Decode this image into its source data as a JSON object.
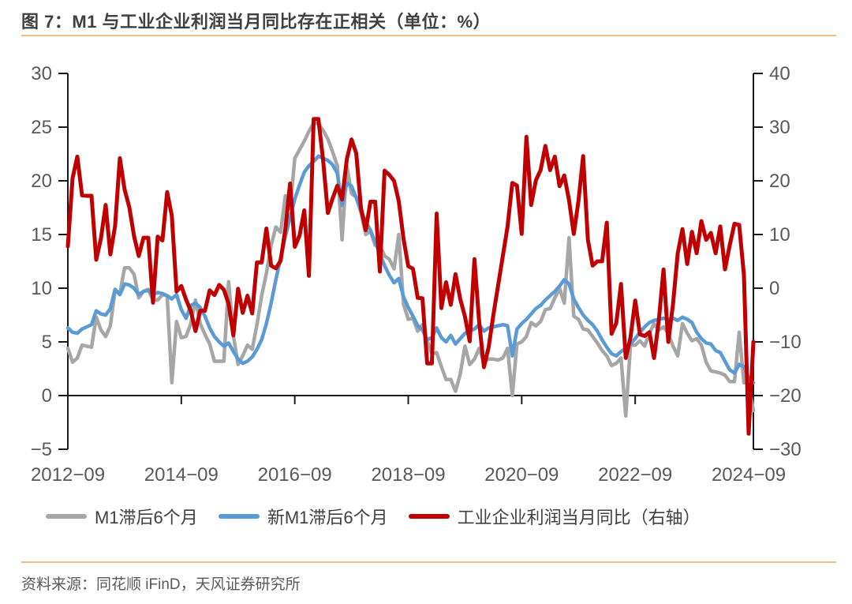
{
  "figure": {
    "title": "图 7：M1 与工业企业利润当月同比存在正相关（单位：%）",
    "source": "资料来源：同花顺 iFinD，天风证券研究所"
  },
  "colors": {
    "title_text": "#404040",
    "rule_orange": "#f3bd8b",
    "axis_line": "#1a1a1a",
    "tick_label": "#595959",
    "series_m1": "#a6a6a6",
    "series_new_m1": "#5b9bd5",
    "series_profit": "#c00000",
    "background": "#ffffff"
  },
  "chart_data": {
    "type": "line",
    "title": "M1 与工业企业利润当月同比存在正相关（单位：%）",
    "frequency": "monthly",
    "x_start": "2012-09",
    "x_end": "2024-10",
    "grid": false,
    "legend_position": "bottom",
    "x_axis": {
      "tick_labels": [
        "2012−09",
        "2014−09",
        "2016−09",
        "2018−09",
        "2020−09",
        "2022−09",
        "2024−09"
      ],
      "tick_indices": [
        0,
        24,
        48,
        72,
        96,
        120,
        144
      ]
    },
    "left_axis": {
      "range": [
        -5,
        30
      ],
      "tick_values": [
        30,
        25,
        20,
        15,
        10,
        5,
        0,
        -5
      ],
      "tick_labels": [
        "30",
        "25",
        "20",
        "15",
        "10",
        "5",
        "0",
        "−5"
      ]
    },
    "right_axis": {
      "range": [
        -30,
        40
      ],
      "tick_values": [
        40,
        30,
        20,
        10,
        0,
        -10,
        -20,
        -30
      ],
      "tick_labels": [
        "40",
        "30",
        "20",
        "10",
        "0",
        "−10",
        "−20",
        "−30"
      ]
    },
    "series": [
      {
        "name": "M1滞后6个月",
        "axis": "left",
        "color": "#a6a6a6",
        "values": [
          4.4,
          3.1,
          3.5,
          4.7,
          4.6,
          4.5,
          7.3,
          6.1,
          5.5,
          6.5,
          9.8,
          9.5,
          11.9,
          11.9,
          11.3,
          9.1,
          9.7,
          9.9,
          8.9,
          8.9,
          9.4,
          9.3,
          1.2,
          6.9,
          5.4,
          5.5,
          6.7,
          8.9,
          6.7,
          5.7,
          4.8,
          3.2,
          3.2,
          3.2,
          10.6,
          5.6,
          2.9,
          3.7,
          4.7,
          4.3,
          6.6,
          9.3,
          11.4,
          14.0,
          15.7,
          15.2,
          18.6,
          17.4,
          22.1,
          22.9,
          23.7,
          24.6,
          25.4,
          25.3,
          24.7,
          23.9,
          22.7,
          21.4,
          14.5,
          21.4,
          18.8,
          18.5,
          17.0,
          15.0,
          15.3,
          14.0,
          14.0,
          13.0,
          12.7,
          11.8,
          15.0,
          8.5,
          7.1,
          7.2,
          6.0,
          6.6,
          5.1,
          3.9,
          4.0,
          2.7,
          1.5,
          1.5,
          0.4,
          2.0,
          4.6,
          2.9,
          3.4,
          4.4,
          3.1,
          3.4,
          3.4,
          3.3,
          3.5,
          4.4,
          0.0,
          4.8,
          5.0,
          5.5,
          6.8,
          6.5,
          6.9,
          8.0,
          8.1,
          9.1,
          10.0,
          8.6,
          14.7,
          7.4,
          7.1,
          6.2,
          6.1,
          5.5,
          4.9,
          4.2,
          3.7,
          2.8,
          3.0,
          3.5,
          -1.9,
          4.7,
          4.7,
          5.1,
          4.6,
          5.8,
          6.7,
          6.1,
          6.4,
          5.8,
          4.6,
          3.7,
          6.7,
          5.8,
          5.1,
          5.3,
          4.7,
          3.1,
          2.3,
          2.2,
          2.1,
          1.9,
          1.3,
          1.3,
          5.9,
          1.2,
          1.1,
          -1.4
        ]
      },
      {
        "name": "新M1滞后6个月",
        "axis": "left",
        "color": "#5b9bd5",
        "values": [
          6.3,
          5.9,
          5.8,
          6.2,
          6.4,
          6.6,
          7.9,
          7.6,
          7.5,
          8.1,
          9.9,
          9.4,
          10.4,
          10.3,
          10.0,
          9.4,
          9.7,
          9.8,
          9.4,
          9.6,
          9.5,
          9.3,
          9.0,
          9.4,
          8.0,
          7.2,
          8.4,
          8.6,
          8.2,
          7.4,
          6.3,
          5.5,
          5.0,
          4.6,
          4.9,
          4.1,
          3.4,
          3.0,
          3.2,
          3.6,
          4.3,
          5.2,
          6.7,
          8.6,
          10.8,
          12.8,
          14.8,
          16.6,
          18.3,
          19.6,
          20.8,
          21.4,
          21.8,
          22.3,
          22.1,
          21.9,
          21.5,
          20.7,
          17.7,
          19.8,
          19.5,
          18.4,
          17.2,
          16.2,
          15.4,
          14.3,
          13.2,
          12.1,
          11.2,
          10.5,
          10.9,
          9.2,
          8.2,
          7.4,
          6.5,
          6.1,
          5.2,
          5.4,
          6.3,
          5.4,
          5.0,
          5.6,
          4.8,
          5.3,
          5.8,
          6.0,
          6.2,
          6.6,
          6.0,
          6.3,
          6.4,
          6.5,
          6.6,
          6.5,
          3.7,
          6.2,
          6.7,
          7.1,
          7.6,
          8.1,
          8.4,
          8.9,
          9.3,
          9.7,
          10.2,
          10.8,
          10.4,
          9.0,
          8.2,
          7.5,
          7.0,
          6.6,
          6.0,
          5.2,
          4.5,
          3.9,
          3.7,
          4.1,
          4.4,
          4.8,
          5.3,
          5.9,
          6.4,
          6.8,
          7.0,
          7.1,
          7.2,
          7.1,
          7.2,
          7.0,
          7.3,
          7.1,
          6.8,
          5.9,
          5.3,
          4.9,
          4.8,
          4.2,
          4.0,
          3.2,
          2.4,
          2.1,
          2.9,
          2.7,
          1.6,
          1.2
        ]
      },
      {
        "name": "工业企业利润当月同比（右轴）",
        "axis": "right",
        "color": "#c00000",
        "values": [
          7.8,
          20.5,
          24.5,
          17.3,
          17.2,
          17.2,
          5.3,
          9.3,
          15.5,
          6.3,
          11.6,
          24.2,
          18.4,
          15.1,
          9.7,
          6.0,
          9.4,
          9.4,
          -2.7,
          9.6,
          8.9,
          17.9,
          13.5,
          -0.6,
          0.4,
          -2.1,
          -4.2,
          -8.0,
          -4.2,
          -4.2,
          -0.4,
          -1.3,
          0.6,
          -0.3,
          -2.9,
          -8.8,
          -0.1,
          -4.6,
          -1.4,
          -4.7,
          4.8,
          4.8,
          11.1,
          4.2,
          3.7,
          5.1,
          11.0,
          19.5,
          7.7,
          9.8,
          14.5,
          2.3,
          31.5,
          31.5,
          23.8,
          14.0,
          16.7,
          19.1,
          16.5,
          24.0,
          27.7,
          25.1,
          14.9,
          10.8,
          16.1,
          16.1,
          3.1,
          21.9,
          21.1,
          20.0,
          16.2,
          9.2,
          4.1,
          3.6,
          -1.8,
          -1.9,
          -14.0,
          -14.0,
          13.9,
          -3.7,
          1.1,
          -3.1,
          2.6,
          -2.0,
          -5.3,
          -9.9,
          5.4,
          -6.3,
          -14.7,
          -11.0,
          -5.0,
          0.5,
          6.0,
          11.5,
          19.6,
          19.1,
          10.1,
          28.2,
          15.5,
          20.1,
          22.0,
          26.5,
          22.0,
          24.5,
          19.0,
          21.0,
          16.4,
          10.1,
          16.3,
          24.6,
          9.0,
          4.2,
          5.0,
          5.0,
          12.2,
          -8.5,
          -6.5,
          0.8,
          -13.0,
          -9.2,
          -2.3,
          -8.6,
          -8.9,
          -8.2,
          -13.0,
          -6.0,
          3.5,
          -10.0,
          -3.0,
          6.5,
          11.0,
          4.5,
          10.5,
          6.5,
          12.5,
          9.0,
          10.3,
          6.5,
          11.5,
          3.5,
          8.0,
          12.0,
          11.8,
          2.5,
          -27.1,
          -10.0
        ]
      }
    ]
  }
}
